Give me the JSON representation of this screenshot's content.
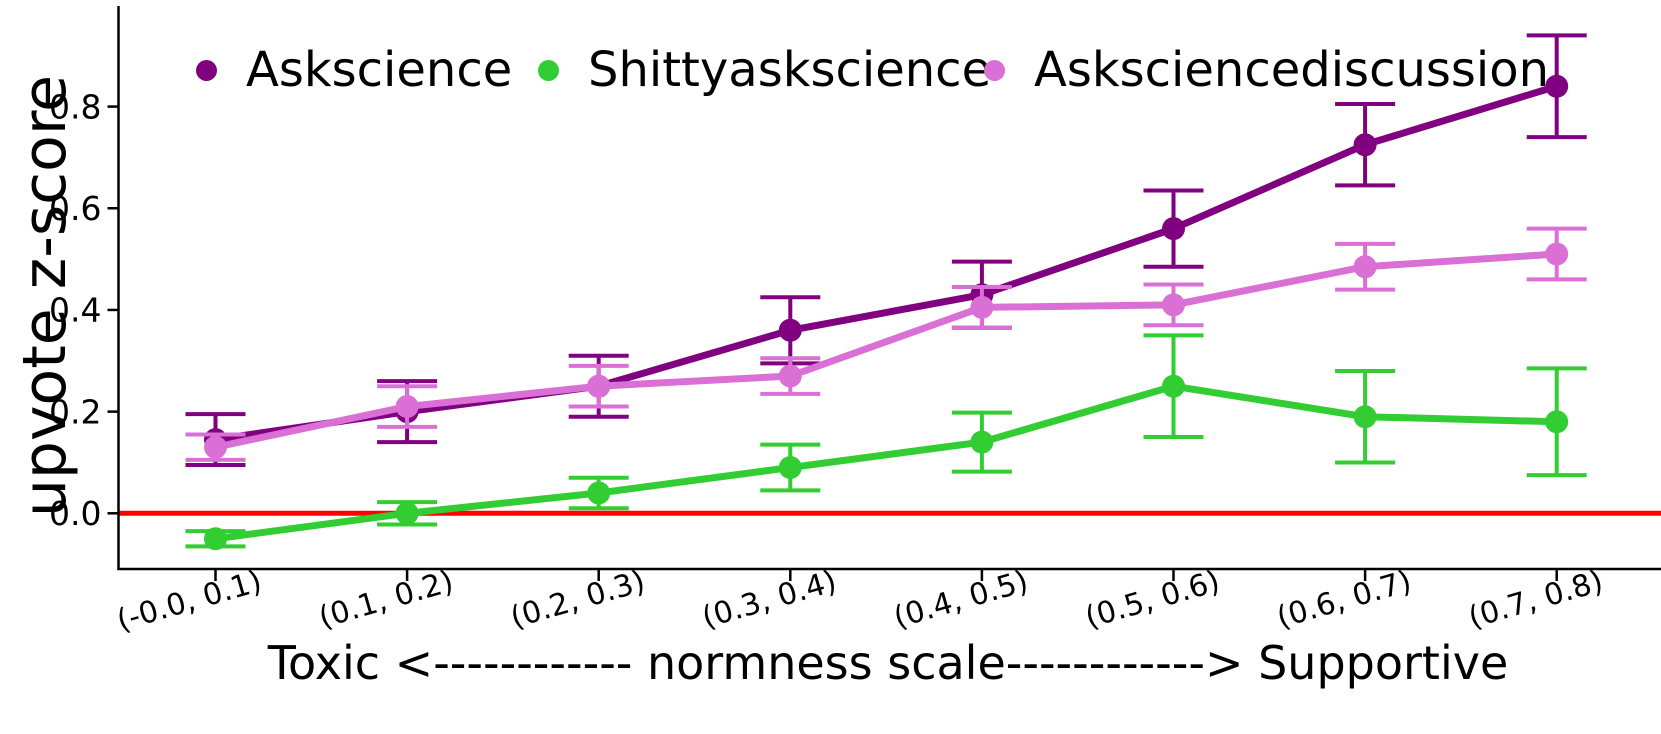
{
  "figure": {
    "background": "#ffffff",
    "axis_color": "#000000",
    "text_color": "#000000"
  },
  "chart_data": {
    "type": "line",
    "title": "",
    "xlabel": "Toxic <------------ normness scale------------> Supportive",
    "ylabel": "upvote z-score",
    "categories": [
      "(-0.0, 0.1)",
      "(0.1, 0.2)",
      "(0.2, 0.3)",
      "(0.3, 0.4)",
      "(0.4, 0.5)",
      "(0.5, 0.6)",
      "(0.6, 0.7)",
      "(0.7, 0.8)"
    ],
    "series": [
      {
        "name": "Askscience",
        "color": "#800080",
        "values": [
          0.145,
          0.2,
          0.25,
          0.36,
          0.43,
          0.56,
          0.725,
          0.84
        ],
        "errors": [
          0.05,
          0.06,
          0.06,
          0.065,
          0.065,
          0.075,
          0.08,
          0.1
        ]
      },
      {
        "name": "Shittyaskscience",
        "color": "#32CD32",
        "values": [
          -0.05,
          0.0,
          0.04,
          0.09,
          0.14,
          0.25,
          0.19,
          0.18
        ],
        "errors": [
          0.015,
          0.022,
          0.03,
          0.045,
          0.058,
          0.1,
          0.09,
          0.105
        ]
      },
      {
        "name": "Asksciencediscussion",
        "color": "#DA70D6",
        "values": [
          0.13,
          0.21,
          0.25,
          0.27,
          0.405,
          0.41,
          0.485,
          0.51
        ],
        "errors": [
          0.025,
          0.04,
          0.04,
          0.035,
          0.04,
          0.04,
          0.045,
          0.05
        ]
      }
    ],
    "y_ticks": [
      0.0,
      0.2,
      0.4,
      0.6,
      0.8
    ],
    "y_tick_labels": [
      "0.0",
      "0.2",
      "0.4",
      "0.6",
      "0.8"
    ],
    "ylim": [
      -0.11,
      0.99
    ],
    "baseline": {
      "y": 0.0,
      "color": "#FF0000"
    },
    "legend_position": "top-inside",
    "grid": false
  }
}
